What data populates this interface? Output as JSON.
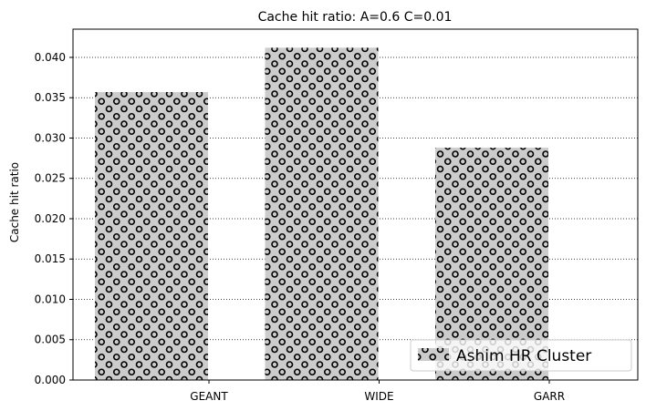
{
  "chart_data": {
    "type": "bar",
    "title": "Cache hit ratio: A=0.6 C=0.01",
    "xlabel": "",
    "ylabel": "Cache hit ratio",
    "categories": [
      "GEANT",
      "WIDE",
      "GARR"
    ],
    "series": [
      {
        "name": "Ashim HR Cluster",
        "values": [
          0.0357,
          0.0412,
          0.0288
        ]
      }
    ],
    "ylim": [
      0,
      0.0435
    ],
    "yticks": [
      "0.000",
      "0.005",
      "0.010",
      "0.015",
      "0.020",
      "0.025",
      "0.030",
      "0.035",
      "0.040"
    ],
    "grid": "horizontal dotted",
    "legend_position": "lower-right",
    "bar_color": "#cccccc",
    "hatch": "circles"
  }
}
